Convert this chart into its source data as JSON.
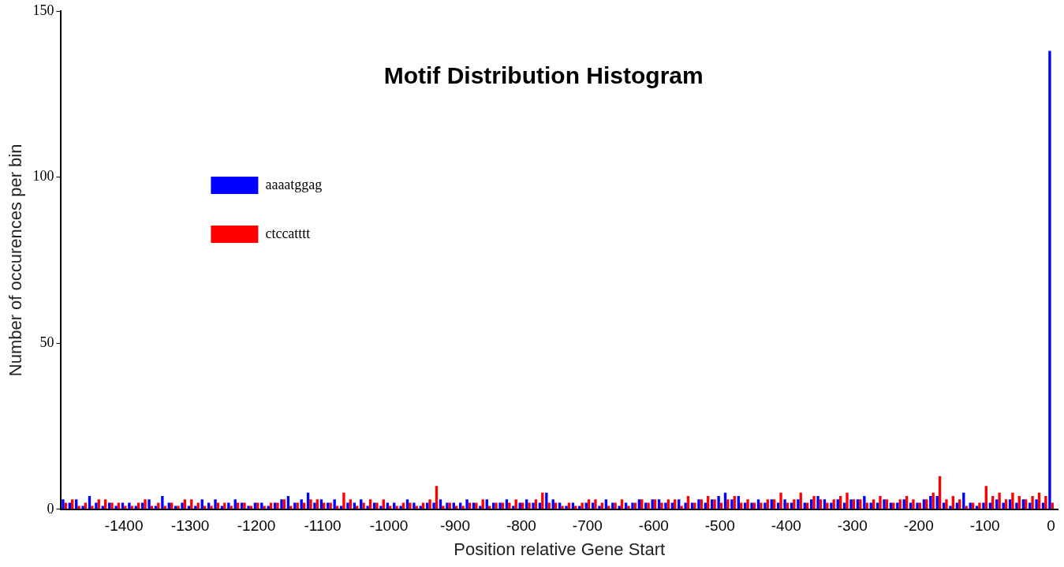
{
  "chart_data": {
    "type": "histogram",
    "title": "Motif Distribution Histogram",
    "xlabel": "Position relative Gene Start",
    "ylabel": "Number of occurences per bin",
    "bins": [
      -1495,
      -1485,
      -1475,
      -1465,
      -1455,
      -1445,
      -1435,
      -1425,
      -1415,
      -1405,
      -1395,
      -1385,
      -1375,
      -1365,
      -1355,
      -1345,
      -1335,
      -1325,
      -1315,
      -1305,
      -1295,
      -1285,
      -1275,
      -1265,
      -1255,
      -1245,
      -1235,
      -1225,
      -1215,
      -1205,
      -1195,
      -1185,
      -1175,
      -1165,
      -1155,
      -1145,
      -1135,
      -1125,
      -1115,
      -1105,
      -1095,
      -1085,
      -1075,
      -1065,
      -1055,
      -1045,
      -1035,
      -1025,
      -1015,
      -1005,
      -995,
      -985,
      -975,
      -965,
      -955,
      -945,
      -935,
      -925,
      -915,
      -905,
      -895,
      -885,
      -875,
      -865,
      -855,
      -845,
      -835,
      -825,
      -815,
      -805,
      -795,
      -785,
      -775,
      -765,
      -755,
      -745,
      -735,
      -725,
      -715,
      -705,
      -695,
      -685,
      -675,
      -665,
      -655,
      -645,
      -635,
      -625,
      -615,
      -605,
      -595,
      -585,
      -575,
      -565,
      -555,
      -545,
      -535,
      -525,
      -515,
      -505,
      -495,
      -485,
      -475,
      -465,
      -455,
      -445,
      -435,
      -425,
      -415,
      -405,
      -395,
      -385,
      -375,
      -365,
      -355,
      -345,
      -335,
      -325,
      -315,
      -305,
      -295,
      -285,
      -275,
      -265,
      -255,
      -245,
      -235,
      -225,
      -215,
      -205,
      -195,
      -185,
      -175,
      -165,
      -155,
      -145,
      -135,
      -125,
      -115,
      -105,
      -95,
      -85,
      -75,
      -65,
      -55,
      -45,
      -35,
      -25,
      -15,
      -5,
      5
    ],
    "series": [
      {
        "name": "aaaatggag",
        "color": "#0000ff",
        "values": [
          3,
          2,
          3,
          1,
          4,
          2,
          1,
          2,
          1,
          2,
          2,
          1,
          2,
          3,
          1,
          4,
          2,
          1,
          2,
          1,
          1,
          3,
          2,
          3,
          1,
          2,
          3,
          2,
          1,
          2,
          2,
          1,
          2,
          3,
          4,
          2,
          3,
          5,
          2,
          3,
          2,
          3,
          1,
          2,
          2,
          3,
          1,
          2,
          1,
          2,
          2,
          1,
          3,
          2,
          1,
          2,
          2,
          3,
          2,
          2,
          2,
          3,
          2,
          1,
          3,
          2,
          2,
          3,
          1,
          2,
          3,
          2,
          2,
          5,
          3,
          2,
          1,
          2,
          1,
          2,
          2,
          1,
          3,
          2,
          1,
          2,
          2,
          3,
          2,
          3,
          3,
          2,
          2,
          3,
          2,
          2,
          3,
          2,
          3,
          4,
          5,
          3,
          4,
          2,
          2,
          3,
          2,
          3,
          2,
          3,
          2,
          3,
          2,
          3,
          4,
          3,
          2,
          3,
          2,
          3,
          3,
          4,
          2,
          2,
          3,
          2,
          2,
          3,
          2,
          2,
          3,
          4,
          4,
          2,
          1,
          2,
          5,
          2,
          1,
          2,
          2,
          3,
          2,
          3,
          2,
          3,
          2,
          3,
          2,
          138
        ]
      },
      {
        "name": "ctccatttt",
        "color": "#ff0000",
        "values": [
          2,
          3,
          1,
          2,
          1,
          3,
          3,
          2,
          2,
          1,
          1,
          2,
          3,
          1,
          2,
          1,
          2,
          1,
          3,
          3,
          2,
          1,
          1,
          2,
          2,
          1,
          2,
          2,
          1,
          2,
          1,
          2,
          2,
          3,
          1,
          2,
          2,
          3,
          3,
          2,
          2,
          1,
          5,
          3,
          1,
          2,
          3,
          2,
          3,
          1,
          1,
          2,
          2,
          1,
          2,
          3,
          7,
          1,
          2,
          1,
          1,
          2,
          2,
          3,
          1,
          2,
          2,
          2,
          3,
          2,
          2,
          3,
          5,
          2,
          2,
          1,
          2,
          1,
          2,
          3,
          3,
          2,
          1,
          2,
          3,
          1,
          2,
          3,
          2,
          3,
          2,
          3,
          3,
          1,
          4,
          2,
          3,
          4,
          3,
          2,
          3,
          4,
          2,
          3,
          2,
          2,
          3,
          3,
          5,
          2,
          3,
          5,
          2,
          4,
          3,
          2,
          3,
          4,
          5,
          3,
          3,
          2,
          3,
          4,
          3,
          2,
          3,
          4,
          3,
          2,
          3,
          5,
          10,
          3,
          4,
          3,
          1,
          2,
          2,
          7,
          4,
          5,
          3,
          5,
          4,
          3,
          4,
          5,
          4,
          2
        ]
      }
    ],
    "xlim": [
      -1495,
      10
    ],
    "xticks": [
      -1400,
      -1300,
      -1200,
      -1100,
      -1000,
      -900,
      -800,
      -700,
      -600,
      -500,
      -400,
      -300,
      -200,
      -100,
      0
    ],
    "ylim": [
      0,
      150
    ],
    "yticks": [
      0,
      50,
      100,
      150
    ],
    "grid": false,
    "legend": "top left"
  }
}
